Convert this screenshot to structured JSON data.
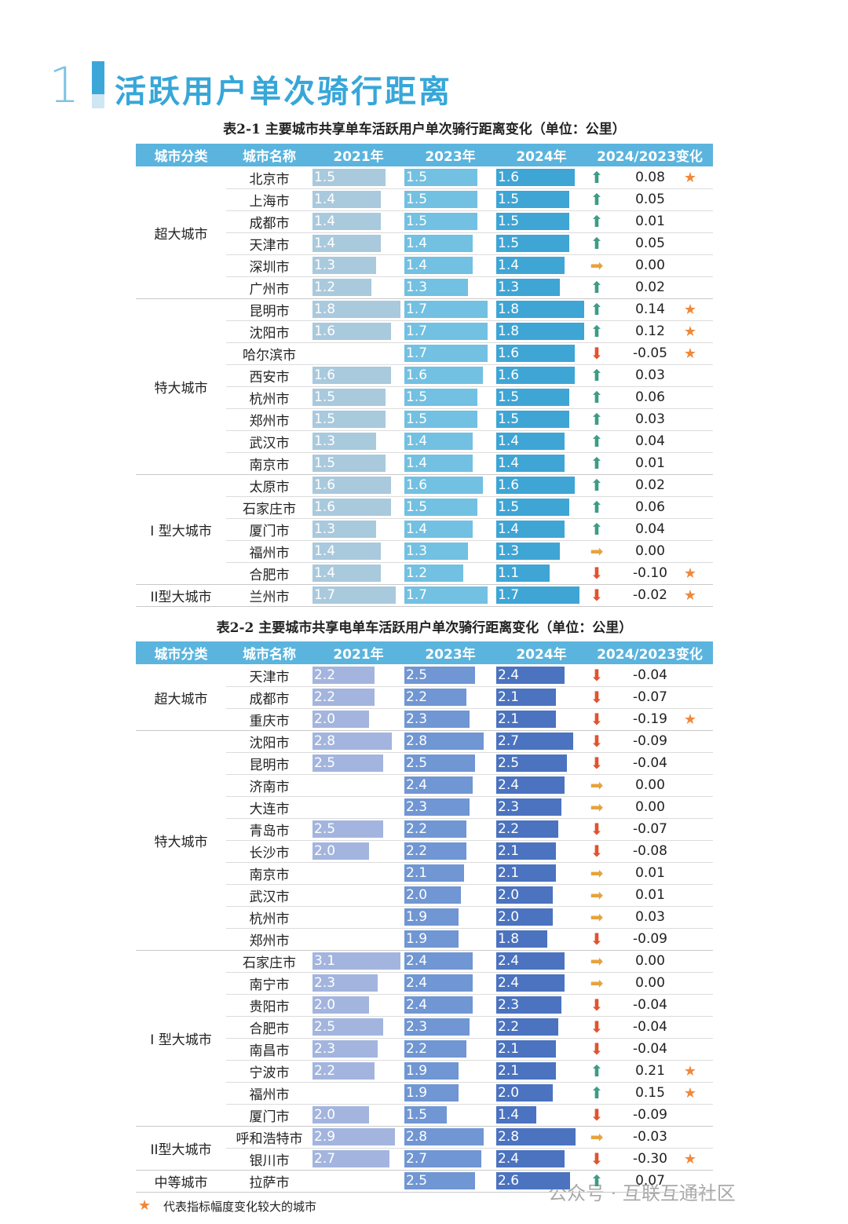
{
  "section": {
    "number": "1",
    "title": "活跃用户单次骑行距离"
  },
  "tables": [
    {
      "caption": "表2-1 主要城市共享单车活跃用户单次骑行距离变化（单位：公里）",
      "headers": [
        "城市分类",
        "城市名称",
        "2021年",
        "2023年",
        "2024年",
        "2024/2023变化"
      ],
      "bar_colors": [
        "#a9c9dd",
        "#72c0e2",
        "#3fa5d5"
      ],
      "header_color": "#5ab4de",
      "groups": [
        {
          "category": "超大城市",
          "rows": [
            {
              "city": "北京市",
              "y2021": 1.5,
              "y2023": 1.5,
              "y2024": 1.6,
              "change": 0.08,
              "arrow": "up",
              "star": true
            },
            {
              "city": "上海市",
              "y2021": 1.4,
              "y2023": 1.5,
              "y2024": 1.5,
              "change": 0.05,
              "arrow": "up",
              "star": false
            },
            {
              "city": "成都市",
              "y2021": 1.4,
              "y2023": 1.5,
              "y2024": 1.5,
              "change": 0.01,
              "arrow": "up",
              "star": false
            },
            {
              "city": "天津市",
              "y2021": 1.4,
              "y2023": 1.4,
              "y2024": 1.5,
              "change": 0.05,
              "arrow": "up",
              "star": false
            },
            {
              "city": "深圳市",
              "y2021": 1.3,
              "y2023": 1.4,
              "y2024": 1.4,
              "change": {
                "value": 0,
                "label": "0.00"
              },
              "arrow": "right",
              "star": false
            },
            {
              "city": "广州市",
              "y2021": 1.2,
              "y2023": 1.3,
              "y2024": 1.3,
              "change": 0.02,
              "arrow": "up",
              "star": false
            }
          ]
        },
        {
          "category": "特大城市",
          "rows": [
            {
              "city": "昆明市",
              "y2021": 1.8,
              "y2023": 1.7,
              "y2024": 1.8,
              "change": 0.14,
              "arrow": "up",
              "star": true
            },
            {
              "city": "沈阳市",
              "y2021": 1.6,
              "y2023": 1.7,
              "y2024": 1.8,
              "change": 0.12,
              "arrow": "up",
              "star": true
            },
            {
              "city": "哈尔滨市",
              "y2021": null,
              "y2023": 1.7,
              "y2024": 1.6,
              "change": -0.05,
              "arrow": "down",
              "star": true
            },
            {
              "city": "西安市",
              "y2021": 1.6,
              "y2023": 1.6,
              "y2024": 1.6,
              "change": 0.03,
              "arrow": "up",
              "star": false
            },
            {
              "city": "杭州市",
              "y2021": 1.5,
              "y2023": 1.5,
              "y2024": 1.5,
              "change": 0.06,
              "arrow": "up",
              "star": false
            },
            {
              "city": "郑州市",
              "y2021": 1.5,
              "y2023": 1.5,
              "y2024": 1.5,
              "change": 0.03,
              "arrow": "up",
              "star": false
            },
            {
              "city": "武汉市",
              "y2021": 1.3,
              "y2023": 1.4,
              "y2024": 1.4,
              "change": 0.04,
              "arrow": "up",
              "star": false
            },
            {
              "city": "南京市",
              "y2021": 1.5,
              "y2023": 1.4,
              "y2024": 1.4,
              "change": 0.01,
              "arrow": "up",
              "star": false
            }
          ]
        },
        {
          "category": "I 型大城市",
          "rows": [
            {
              "city": "太原市",
              "y2021": 1.6,
              "y2023": 1.6,
              "y2024": 1.6,
              "change": 0.02,
              "arrow": "up",
              "star": false
            },
            {
              "city": "石家庄市",
              "y2021": 1.6,
              "y2023": 1.5,
              "y2024": 1.5,
              "change": 0.06,
              "arrow": "up",
              "star": false
            },
            {
              "city": "厦门市",
              "y2021": 1.3,
              "y2023": 1.4,
              "y2024": 1.4,
              "change": 0.04,
              "arrow": "up",
              "star": false
            },
            {
              "city": "福州市",
              "y2021": 1.4,
              "y2023": 1.3,
              "y2024": 1.3,
              "change": {
                "value": 0,
                "label": "0.00"
              },
              "arrow": "right",
              "star": false
            },
            {
              "city": "合肥市",
              "y2021": 1.4,
              "y2023": 1.2,
              "y2024": 1.1,
              "change": {
                "value": -0.1,
                "label": "-0.10"
              },
              "arrow": "down",
              "star": true
            }
          ]
        },
        {
          "category": "II型大城市",
          "rows": [
            {
              "city": "兰州市",
              "y2021": 1.7,
              "y2023": 1.7,
              "y2024": 1.7,
              "change": -0.02,
              "arrow": "down",
              "star": true
            }
          ]
        }
      ]
    },
    {
      "caption": "表2-2 主要城市共享电单车活跃用户单次骑行距离变化（单位：公里）",
      "headers": [
        "城市分类",
        "城市名称",
        "2021年",
        "2023年",
        "2024年",
        "2024/2023变化"
      ],
      "bar_colors": [
        "#a3b5de",
        "#7096d3",
        "#4b73bf"
      ],
      "header_color": "#5ab4de",
      "groups": [
        {
          "category": "超大城市",
          "rows": [
            {
              "city": "天津市",
              "y2021": 2.2,
              "y2023": 2.5,
              "y2024": 2.4,
              "change": -0.04,
              "arrow": "down",
              "star": false
            },
            {
              "city": "成都市",
              "y2021": 2.2,
              "y2023": 2.2,
              "y2024": 2.1,
              "change": -0.07,
              "arrow": "down",
              "star": false
            },
            {
              "city": "重庆市",
              "y2021": {
                "value": 2,
                "label": "2.0"
              },
              "y2023": 2.3,
              "y2024": 2.1,
              "change": -0.19,
              "arrow": "down",
              "star": true
            }
          ]
        },
        {
          "category": "特大城市",
          "rows": [
            {
              "city": "沈阳市",
              "y2021": 2.8,
              "y2023": 2.8,
              "y2024": 2.7,
              "change": -0.09,
              "arrow": "down",
              "star": false
            },
            {
              "city": "昆明市",
              "y2021": 2.5,
              "y2023": 2.5,
              "y2024": 2.5,
              "change": -0.04,
              "arrow": "down",
              "star": false
            },
            {
              "city": "济南市",
              "y2021": null,
              "y2023": 2.4,
              "y2024": 2.4,
              "change": {
                "value": 0,
                "label": "0.00"
              },
              "arrow": "right",
              "star": false
            },
            {
              "city": "大连市",
              "y2021": null,
              "y2023": 2.3,
              "y2024": 2.3,
              "change": {
                "value": 0,
                "label": "0.00"
              },
              "arrow": "right",
              "star": false
            },
            {
              "city": "青岛市",
              "y2021": 2.5,
              "y2023": 2.2,
              "y2024": 2.2,
              "change": -0.07,
              "arrow": "down",
              "star": false
            },
            {
              "city": "长沙市",
              "y2021": {
                "value": 2,
                "label": "2.0"
              },
              "y2023": 2.2,
              "y2024": 2.1,
              "change": -0.08,
              "arrow": "down",
              "star": false
            },
            {
              "city": "南京市",
              "y2021": null,
              "y2023": 2.1,
              "y2024": 2.1,
              "change": 0.01,
              "arrow": "right",
              "star": false
            },
            {
              "city": "武汉市",
              "y2021": null,
              "y2023": {
                "value": 2,
                "label": "2.0"
              },
              "y2024": {
                "value": 2,
                "label": "2.0"
              },
              "change": 0.01,
              "arrow": "right",
              "star": false
            },
            {
              "city": "杭州市",
              "y2021": null,
              "y2023": 1.9,
              "y2024": {
                "value": 2,
                "label": "2.0"
              },
              "change": 0.03,
              "arrow": "right",
              "star": false
            },
            {
              "city": "郑州市",
              "y2021": null,
              "y2023": 1.9,
              "y2024": 1.8,
              "change": -0.09,
              "arrow": "down",
              "star": false
            }
          ]
        },
        {
          "category": "I 型大城市",
          "rows": [
            {
              "city": "石家庄市",
              "y2021": 3.1,
              "y2023": 2.4,
              "y2024": 2.4,
              "change": {
                "value": 0,
                "label": "0.00"
              },
              "arrow": "right",
              "star": false
            },
            {
              "city": "南宁市",
              "y2021": 2.3,
              "y2023": 2.4,
              "y2024": 2.4,
              "change": {
                "value": 0,
                "label": "0.00"
              },
              "arrow": "right",
              "star": false
            },
            {
              "city": "贵阳市",
              "y2021": {
                "value": 2,
                "label": "2.0"
              },
              "y2023": 2.4,
              "y2024": 2.3,
              "change": -0.04,
              "arrow": "down",
              "star": false
            },
            {
              "city": "合肥市",
              "y2021": 2.5,
              "y2023": 2.3,
              "y2024": 2.2,
              "change": -0.04,
              "arrow": "down",
              "star": false
            },
            {
              "city": "南昌市",
              "y2021": 2.3,
              "y2023": 2.2,
              "y2024": 2.1,
              "change": -0.04,
              "arrow": "down",
              "star": false
            },
            {
              "city": "宁波市",
              "y2021": 2.2,
              "y2023": 1.9,
              "y2024": 2.1,
              "change": 0.21,
              "arrow": "up",
              "star": true
            },
            {
              "city": "福州市",
              "y2021": null,
              "y2023": 1.9,
              "y2024": {
                "value": 2,
                "label": "2.0"
              },
              "change": 0.15,
              "arrow": "up",
              "star": true
            },
            {
              "city": "厦门市",
              "y2021": {
                "value": 2,
                "label": "2.0"
              },
              "y2023": 1.5,
              "y2024": 1.4,
              "change": -0.09,
              "arrow": "down",
              "star": false
            }
          ]
        },
        {
          "category": "II型大城市",
          "rows": [
            {
              "city": "呼和浩特市",
              "y2021": 2.9,
              "y2023": 2.8,
              "y2024": 2.8,
              "change": -0.03,
              "arrow": "right",
              "star": false
            },
            {
              "city": "银川市",
              "y2021": 2.7,
              "y2023": 2.7,
              "y2024": 2.4,
              "change": {
                "value": -0.3,
                "label": "-0.30"
              },
              "arrow": "down",
              "star": true
            }
          ]
        },
        {
          "category": "中等城市",
          "rows": [
            {
              "city": "拉萨市",
              "y2021": null,
              "y2023": 2.5,
              "y2024": 2.6,
              "change": 0.07,
              "arrow": "up",
              "star": false
            }
          ]
        }
      ]
    }
  ],
  "footnote": "代表指标幅度变化较大的城市",
  "watermark": "公众号 · 互联互通社区"
}
